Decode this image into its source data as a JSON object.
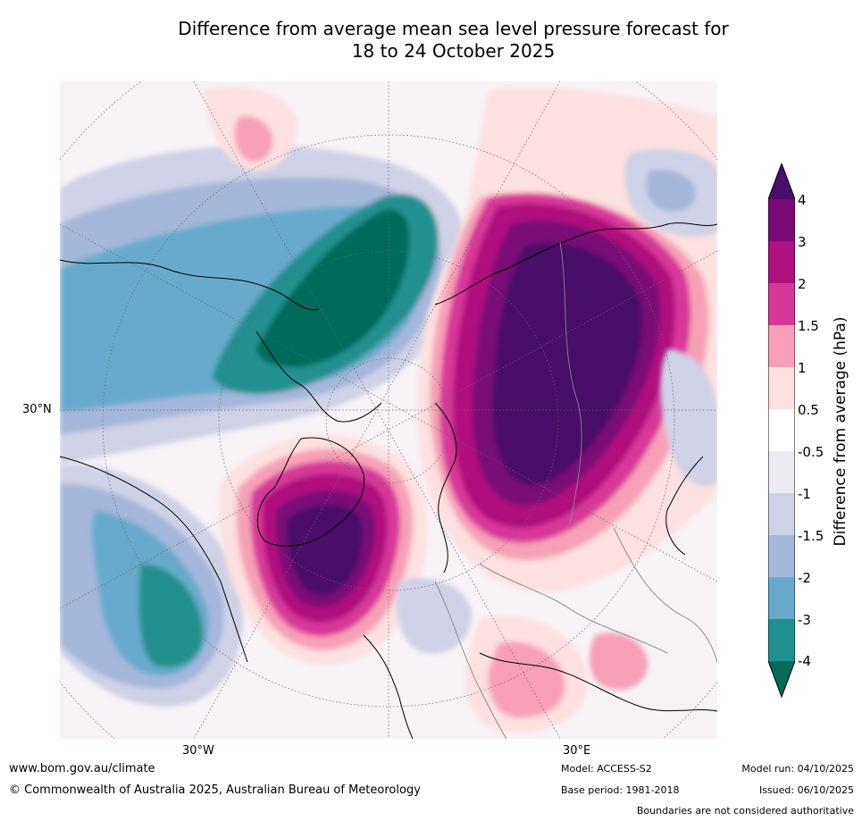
{
  "title": {
    "line1": "Difference from average mean sea level pressure forecast for",
    "line2": "18 to 24 October 2025"
  },
  "map": {
    "projection": "polar stereographic",
    "latitude_labels": [
      "30°N"
    ],
    "longitude_labels": [
      "30°W",
      "30°E"
    ],
    "features": [
      "Positive anomaly over Scandinavia and western Russia (>4 hPa)",
      "Positive anomaly south of Greenland / North Atlantic (>4 hPa)",
      "Negative anomaly over Arctic Canada (<-4 hPa)",
      "Negative anomaly over North Pacific (<-4 hPa)"
    ]
  },
  "colorbar": {
    "title": "Difference from average (hPa)",
    "ticks": [
      "4",
      "3",
      "2",
      "1.5",
      "1",
      "0.5",
      "-0.5",
      "-1",
      "-1.5",
      "-2",
      "-3",
      "-4"
    ],
    "colors": [
      "#4a0f6a",
      "#7a0a78",
      "#b0107f",
      "#d8379a",
      "#f7a0b8",
      "#fde0e0",
      "#ffffff",
      "#eeeaf2",
      "#cfd1e6",
      "#a5b7da",
      "#68aacd",
      "#20908f",
      "#046b5a"
    ]
  },
  "footer": {
    "website": "www.bom.gov.au/climate",
    "copyright": "© Commonwealth of Australia 2025, Australian Bureau of Meteorology",
    "model": "Model: ACCESS-S2",
    "base_period": "Base period: 1981-2018",
    "model_run": "Model run: 04/10/2025",
    "issued": "Issued: 06/10/2025",
    "disclaimer": "Boundaries are not considered authoritative"
  }
}
